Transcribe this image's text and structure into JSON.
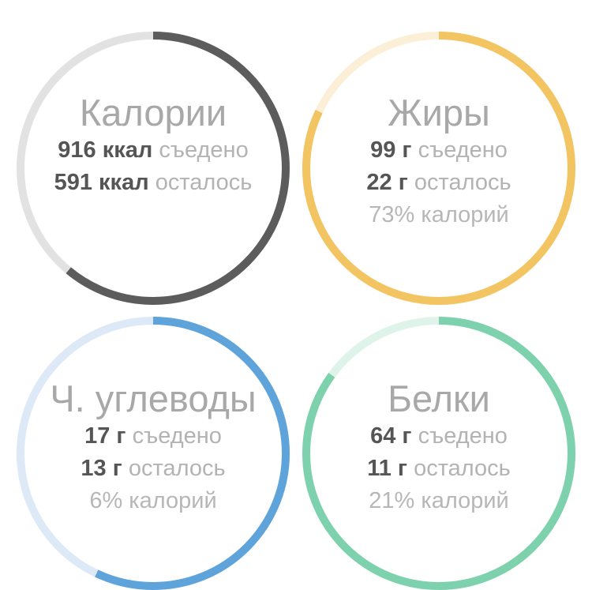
{
  "cards": [
    {
      "id": "calories",
      "title": "Калории",
      "eaten_value": "916 ккал",
      "eaten_label": "съедено",
      "left_value": "591 ккал",
      "left_label": "осталось",
      "percent_text": "",
      "progress": 0.61,
      "colors": {
        "track": "#e2e2e2",
        "fill": "#5c5c5c"
      }
    },
    {
      "id": "fats",
      "title": "Жиры",
      "eaten_value": "99 г",
      "eaten_label": "съедено",
      "left_value": "22 г",
      "left_label": "осталось",
      "percent_text": "73% калорий",
      "progress": 0.82,
      "colors": {
        "track": "#fcefd8",
        "fill": "#f2c462"
      }
    },
    {
      "id": "carbs",
      "title": "Ч. углеводы",
      "eaten_value": "17 г",
      "eaten_label": "съедено",
      "left_value": "13 г",
      "left_label": "осталось",
      "percent_text": "6% калорий",
      "progress": 0.57,
      "colors": {
        "track": "#dde9f6",
        "fill": "#5ea3da"
      }
    },
    {
      "id": "proteins",
      "title": "Белки",
      "eaten_value": "64 г",
      "eaten_label": "съедено",
      "left_value": "11 г",
      "left_label": "осталось",
      "percent_text": "21% калорий",
      "progress": 0.85,
      "colors": {
        "track": "#def4ea",
        "fill": "#7dd1ad"
      }
    }
  ]
}
